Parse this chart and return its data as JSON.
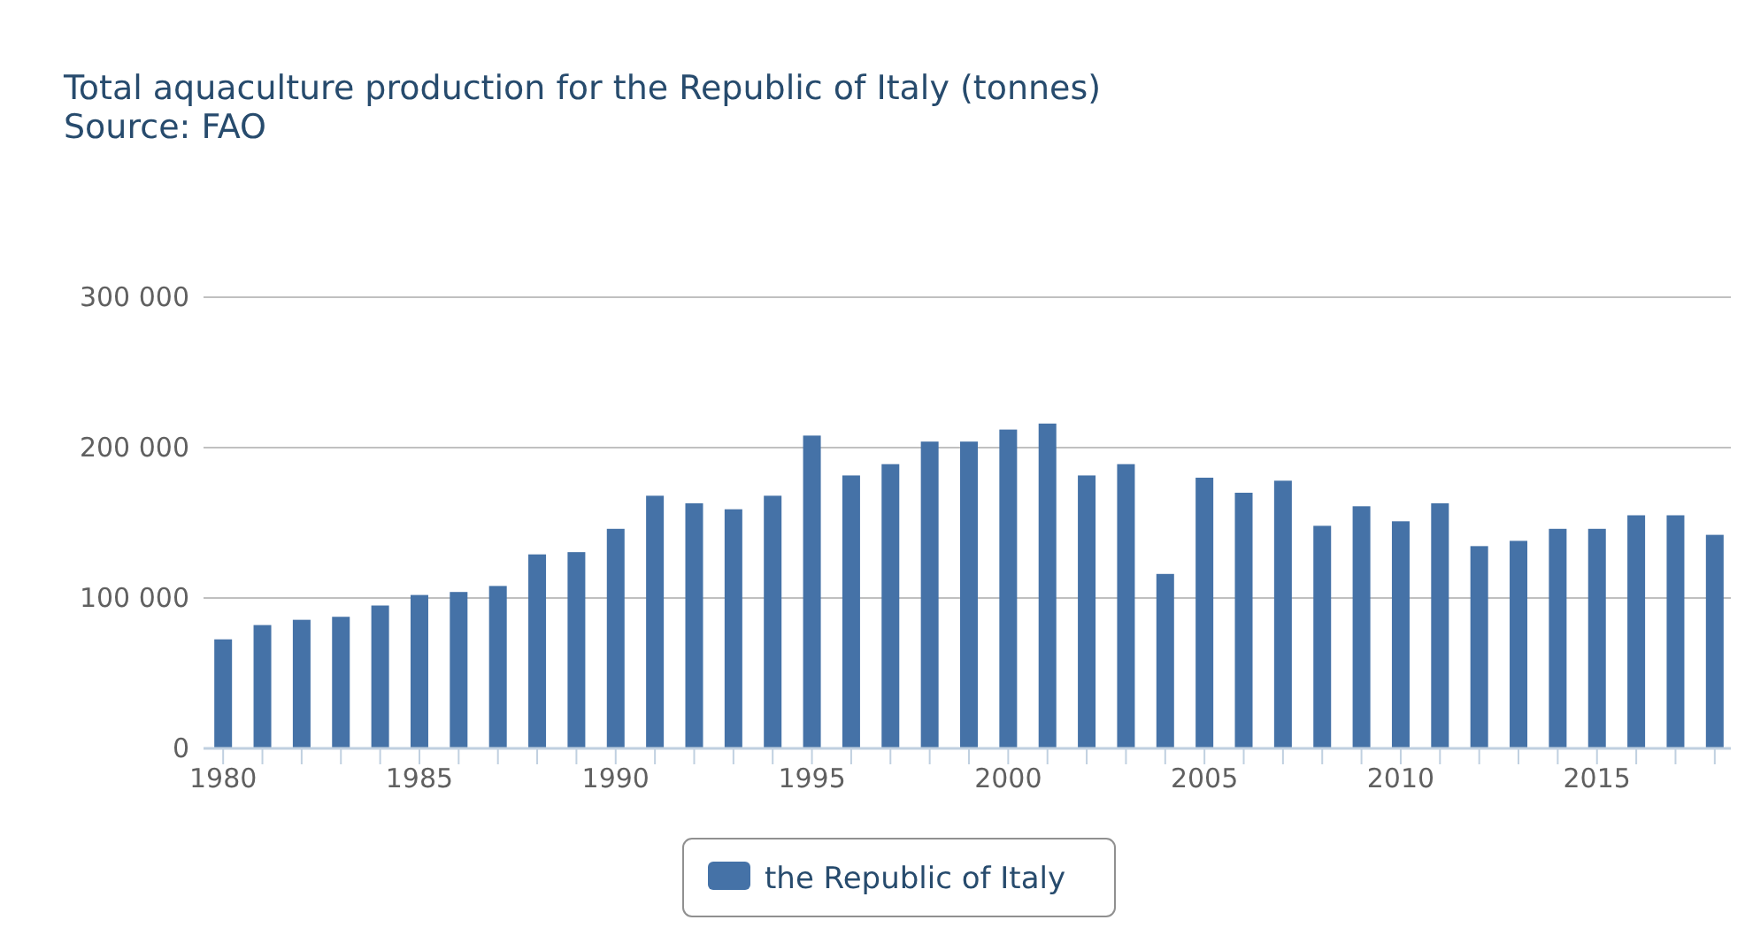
{
  "chart_data": {
    "type": "bar",
    "title": "Total aquaculture production for the Republic of Italy (tonnes)",
    "subtitle": "Source: FAO",
    "x": [
      1980,
      1981,
      1982,
      1983,
      1984,
      1985,
      1986,
      1987,
      1988,
      1989,
      1990,
      1991,
      1992,
      1993,
      1994,
      1995,
      1996,
      1997,
      1998,
      1999,
      2000,
      2001,
      2002,
      2003,
      2004,
      2005,
      2006,
      2007,
      2008,
      2009,
      2010,
      2011,
      2012,
      2013,
      2014,
      2015,
      2016,
      2017,
      2018
    ],
    "series": [
      {
        "name": "the Republic of Italy",
        "color": "#4572a7",
        "values": [
          72500,
          82000,
          85500,
          87500,
          95000,
          102000,
          104000,
          108000,
          129000,
          130500,
          146000,
          168000,
          163000,
          159000,
          168000,
          208000,
          181500,
          189000,
          204000,
          204000,
          212000,
          216000,
          181500,
          189000,
          116000,
          180000,
          170000,
          178000,
          148000,
          161000,
          151000,
          163000,
          134500,
          138000,
          146000,
          146000,
          155000,
          155000,
          142000
        ]
      }
    ],
    "xlim": [
      1979.5,
      2018.5
    ],
    "xticks": [
      1980,
      {
        "value": 1981,
        "label": null
      },
      {
        "value": 1982,
        "label": null
      },
      {
        "value": 1983,
        "label": null
      },
      {
        "value": 1984,
        "label": null
      },
      1985,
      {
        "value": 1986,
        "label": null
      },
      {
        "value": 1987,
        "label": null
      },
      {
        "value": 1988,
        "label": null
      },
      {
        "value": 1989,
        "label": null
      },
      1990,
      {
        "value": 1991,
        "label": null
      },
      {
        "value": 1992,
        "label": null
      },
      {
        "value": 1993,
        "label": null
      },
      {
        "value": 1994,
        "label": null
      },
      1995,
      {
        "value": 1996,
        "label": null
      },
      {
        "value": 1997,
        "label": null
      },
      {
        "value": 1998,
        "label": null
      },
      {
        "value": 1999,
        "label": null
      },
      2000,
      {
        "value": 2001,
        "label": null
      },
      {
        "value": 2002,
        "label": null
      },
      {
        "value": 2003,
        "label": null
      },
      {
        "value": 2004,
        "label": null
      },
      2005,
      {
        "value": 2006,
        "label": null
      },
      {
        "value": 2007,
        "label": null
      },
      {
        "value": 2008,
        "label": null
      },
      {
        "value": 2009,
        "label": null
      },
      2010,
      {
        "value": 2011,
        "label": null
      },
      {
        "value": 2012,
        "label": null
      },
      {
        "value": 2013,
        "label": null
      },
      {
        "value": 2014,
        "label": null
      },
      2015,
      {
        "value": 2016,
        "label": null
      },
      {
        "value": 2017,
        "label": null
      },
      {
        "value": 2018,
        "label": null
      }
    ],
    "ylim": [
      0,
      300000
    ],
    "yticks": [
      0,
      {
        "value": 100000,
        "label": "100 000"
      },
      {
        "value": 200000,
        "label": "200 000"
      },
      {
        "value": 300000,
        "label": "300 000"
      }
    ],
    "grid": "y",
    "legend": "bottom"
  }
}
